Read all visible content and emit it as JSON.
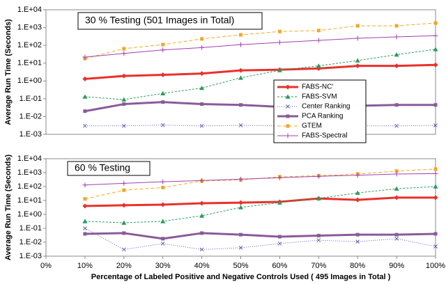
{
  "chart_data": [
    {
      "type": "line",
      "title": "30 % Testing (501 Images in Total)",
      "ylabel": "Average Run Time (Seconds)",
      "log_y": true,
      "grid": false,
      "legend": "center right",
      "x": [
        10,
        20,
        30,
        40,
        50,
        60,
        70,
        80,
        90,
        100
      ],
      "xlim": [
        0,
        100
      ],
      "ylim": [
        0.001,
        10000
      ],
      "yticks": [
        {
          "value": 10000,
          "label": "1.E+04"
        },
        {
          "value": 1000,
          "label": "1.E+03"
        },
        {
          "value": 100,
          "label": "1.E+02"
        },
        {
          "value": 10,
          "label": "1.E+01"
        },
        {
          "value": 1,
          "label": "1.E+00"
        },
        {
          "value": 0.1,
          "label": "1.E-01"
        },
        {
          "value": 0.01,
          "label": "1.E-02"
        },
        {
          "value": 0.001,
          "label": "1.E-03"
        }
      ],
      "series": [
        {
          "name": "FABS-NC'",
          "color": "#e8312a",
          "width": 3,
          "dash": "none",
          "marker": "diamond",
          "values": [
            1.3,
            1.9,
            2.2,
            2.6,
            3.9,
            4.3,
            5,
            7,
            7,
            8
          ]
        },
        {
          "name": "FABS-SVM",
          "color": "#2e9a5e",
          "width": 1,
          "dash": "3 2",
          "marker": "triangle",
          "values": [
            0.13,
            0.09,
            0.2,
            0.4,
            1.5,
            4,
            7,
            14,
            30,
            60
          ]
        },
        {
          "name": "Center Ranking",
          "color": "#5b5fb5",
          "width": 1,
          "dash": "1 2",
          "marker": "x",
          "values": [
            0.003,
            0.003,
            0.0033,
            0.003,
            0.0032,
            0.003,
            0.003,
            0.003,
            0.003,
            0.0032
          ]
        },
        {
          "name": "PCA Ranking",
          "color": "#8a5a9a",
          "width": 3,
          "dash": "none",
          "marker": "square",
          "values": [
            0.02,
            0.05,
            0.065,
            0.05,
            0.045,
            0.035,
            0.04,
            0.04,
            0.045,
            0.045
          ]
        },
        {
          "name": "GTEM",
          "color": "#f5a623",
          "width": 1,
          "dash": "5 3",
          "marker": "square",
          "values": [
            18,
            65,
            110,
            230,
            390,
            600,
            680,
            1250,
            1250,
            1800
          ]
        },
        {
          "name": "FABS-Spectral",
          "color": "#a040b0",
          "width": 1,
          "dash": "none",
          "marker": "plus",
          "values": [
            22,
            35,
            55,
            75,
            110,
            145,
            190,
            250,
            300,
            350
          ]
        }
      ]
    },
    {
      "type": "line",
      "title": "60 % Testing",
      "ylabel": "Average Run Time (Seconds)",
      "xlabel": "Percentage of Labeled Positive and Negative Controls Used ( 495 Images in Total )",
      "log_y": true,
      "grid": false,
      "x": [
        10,
        20,
        30,
        40,
        50,
        60,
        70,
        80,
        90,
        100
      ],
      "xlim": [
        0,
        100
      ],
      "xticks": [
        {
          "value": 0,
          "label": "0%"
        },
        {
          "value": 10,
          "label": "10%"
        },
        {
          "value": 20,
          "label": "20%"
        },
        {
          "value": 30,
          "label": "30%"
        },
        {
          "value": 40,
          "label": "40%"
        },
        {
          "value": 50,
          "label": "50%"
        },
        {
          "value": 60,
          "label": "60%"
        },
        {
          "value": 70,
          "label": "70%"
        },
        {
          "value": 80,
          "label": "80%"
        },
        {
          "value": 90,
          "label": "90%"
        },
        {
          "value": 100,
          "label": "100%"
        }
      ],
      "ylim": [
        0.001,
        10000
      ],
      "yticks": [
        {
          "value": 10000,
          "label": "1.E+04"
        },
        {
          "value": 1000,
          "label": "1.E+03"
        },
        {
          "value": 100,
          "label": "1.E+02"
        },
        {
          "value": 10,
          "label": "1.E+01"
        },
        {
          "value": 1,
          "label": "1.E+00"
        },
        {
          "value": 0.1,
          "label": "1.E-01"
        },
        {
          "value": 0.01,
          "label": "1.E-02"
        },
        {
          "value": 0.001,
          "label": "1.E-03"
        }
      ],
      "series": [
        {
          "color": "#e8312a",
          "width": 3,
          "dash": "none",
          "marker": "diamond",
          "values": [
            4,
            4.5,
            5,
            6.3,
            7,
            8,
            14,
            11,
            16,
            16
          ]
        },
        {
          "color": "#2e9a5e",
          "width": 1,
          "dash": "3 2",
          "marker": "triangle",
          "values": [
            0.32,
            0.25,
            0.32,
            0.8,
            3.2,
            7,
            14,
            35,
            70,
            100
          ]
        },
        {
          "color": "#5b5fb5",
          "width": 1,
          "dash": "1 2",
          "marker": "x",
          "values": [
            0.1,
            0.003,
            0.008,
            0.003,
            0.004,
            0.008,
            0.014,
            0.011,
            0.018,
            0.005
          ]
        },
        {
          "color": "#8a5a9a",
          "width": 3,
          "dash": "none",
          "marker": "square",
          "values": [
            0.04,
            0.045,
            0.018,
            0.045,
            0.035,
            0.025,
            0.03,
            0.035,
            0.035,
            0.04
          ]
        },
        {
          "color": "#f5a623",
          "width": 1,
          "dash": "5 3",
          "marker": "square",
          "values": [
            13,
            55,
            85,
            250,
            300,
            500,
            600,
            800,
            1300,
            1800
          ]
        },
        {
          "color": "#a040b0",
          "width": 1,
          "dash": "none",
          "marker": "plus",
          "values": [
            130,
            170,
            220,
            270,
            340,
            430,
            550,
            650,
            800,
            850
          ]
        }
      ]
    }
  ]
}
